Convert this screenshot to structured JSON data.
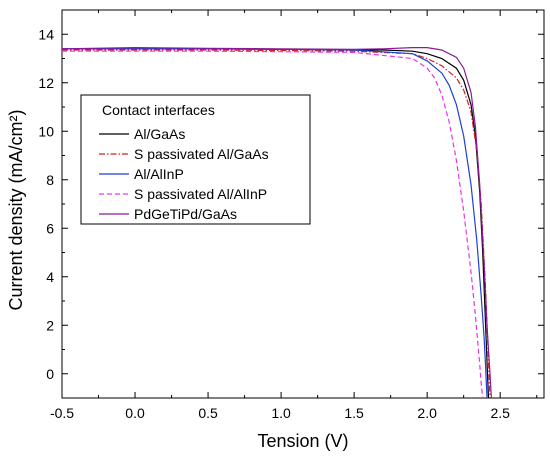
{
  "chart_data": {
    "type": "line",
    "title": "",
    "xlabel": "Tension (V)",
    "ylabel": "Current density (mA/cm²)",
    "xlim": [
      -0.5,
      2.8
    ],
    "ylim": [
      -1.0,
      15.0
    ],
    "x_ticks": [
      -0.5,
      0.0,
      0.5,
      1.0,
      1.5,
      2.0,
      2.5
    ],
    "x_tick_labels": [
      "-0.5",
      "0.0",
      "0.5",
      "1.0",
      "1.5",
      "2.0",
      "2.5"
    ],
    "y_ticks": [
      0,
      2,
      4,
      6,
      8,
      10,
      12,
      14
    ],
    "y_tick_labels": [
      "0",
      "2",
      "4",
      "6",
      "8",
      "10",
      "12",
      "14"
    ],
    "grid": false,
    "legend": {
      "title": "Contact interfaces",
      "placement": "left"
    },
    "series": [
      {
        "name": "Al/GaAs",
        "color": "#000000",
        "dash": "solid",
        "x": [
          -0.5,
          0.0,
          0.5,
          1.0,
          1.5,
          1.7,
          1.9,
          2.0,
          2.1,
          2.2,
          2.25,
          2.3,
          2.33,
          2.36,
          2.38,
          2.4,
          2.41,
          2.42
        ],
        "y": [
          13.4,
          13.4,
          13.4,
          13.38,
          13.35,
          13.35,
          13.3,
          13.2,
          13.0,
          12.6,
          12.1,
          11.1,
          9.8,
          7.5,
          5.0,
          2.0,
          0.5,
          -1.0
        ]
      },
      {
        "name": "S passivated Al/GaAs",
        "color": "#d62020",
        "dash": "dashdot",
        "x": [
          -0.5,
          0.0,
          0.5,
          1.0,
          1.5,
          1.9,
          2.0,
          2.1,
          2.2,
          2.25,
          2.3,
          2.34,
          2.37,
          2.4,
          2.42,
          2.43
        ],
        "y": [
          13.35,
          13.35,
          13.35,
          13.33,
          13.3,
          13.2,
          13.0,
          12.7,
          12.2,
          11.7,
          10.8,
          9.2,
          7.0,
          3.5,
          0.5,
          -1.0
        ]
      },
      {
        "name": "Al/AlInP",
        "color": "#1f3fd6",
        "dash": "solid",
        "x": [
          -0.5,
          0.0,
          0.5,
          1.0,
          1.5,
          1.9,
          2.0,
          2.1,
          2.15,
          2.2,
          2.25,
          2.3,
          2.34,
          2.37,
          2.39,
          2.4,
          2.41
        ],
        "y": [
          13.4,
          13.4,
          13.4,
          13.38,
          13.35,
          13.2,
          12.9,
          12.4,
          11.9,
          11.1,
          9.8,
          7.8,
          5.5,
          3.2,
          1.5,
          0.3,
          -1.0
        ]
      },
      {
        "name": "S passivated Al/AlInP",
        "color": "#ee30ee",
        "dash": "dashed",
        "x": [
          -0.5,
          0.0,
          0.5,
          1.0,
          1.5,
          1.9,
          2.0,
          2.05,
          2.1,
          2.15,
          2.2,
          2.25,
          2.3,
          2.33,
          2.36,
          2.37,
          2.38
        ],
        "y": [
          13.3,
          13.3,
          13.3,
          13.28,
          13.25,
          13.0,
          12.6,
          12.2,
          11.5,
          10.4,
          8.8,
          6.7,
          4.2,
          2.4,
          0.4,
          -0.4,
          -1.0
        ]
      },
      {
        "name": "PdGeTiPd/GaAs",
        "color": "#8a1a9a",
        "dash": "solid",
        "x": [
          -0.5,
          0.0,
          0.5,
          1.0,
          1.5,
          1.7,
          1.9,
          2.0,
          2.1,
          2.2,
          2.25,
          2.3,
          2.33,
          2.36,
          2.39,
          2.41,
          2.43,
          2.44
        ],
        "y": [
          13.4,
          13.45,
          13.42,
          13.4,
          13.38,
          13.4,
          13.45,
          13.45,
          13.35,
          13.05,
          12.6,
          11.6,
          10.2,
          7.8,
          4.5,
          2.0,
          0.0,
          -1.0
        ]
      }
    ]
  }
}
